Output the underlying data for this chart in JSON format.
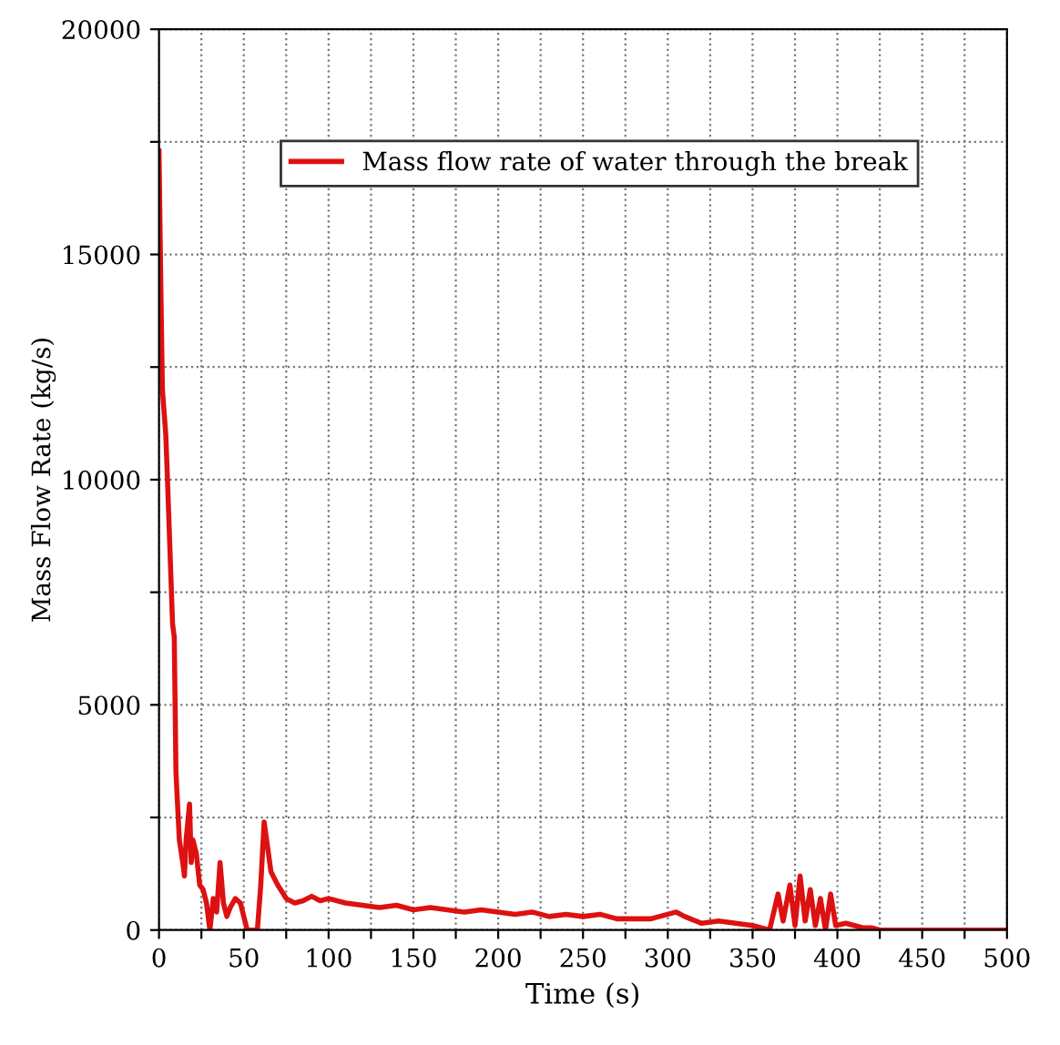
{
  "chart_data": {
    "type": "line",
    "xlabel": "Time (s)",
    "ylabel": "Mass Flow Rate (kg/s)",
    "x": [
      0,
      1,
      2,
      4,
      5,
      8,
      9,
      10,
      12,
      14,
      15,
      16,
      18,
      19,
      20,
      22,
      24,
      26,
      28,
      30,
      32,
      34,
      36,
      38,
      40,
      42,
      45,
      48,
      52,
      58,
      60,
      62,
      66,
      70,
      75,
      80,
      85,
      90,
      95,
      100,
      110,
      120,
      130,
      140,
      150,
      160,
      170,
      180,
      190,
      200,
      210,
      220,
      230,
      240,
      250,
      260,
      270,
      280,
      290,
      300,
      305,
      310,
      320,
      330,
      340,
      350,
      360,
      365,
      368,
      372,
      375,
      378,
      381,
      384,
      387,
      390,
      393,
      396,
      399,
      405,
      410,
      415,
      420,
      425,
      500
    ],
    "series": [
      {
        "name": "Mass flow rate of water through the break",
        "color": "#dd1111",
        "values": [
          17300,
          14500,
          12000,
          11000,
          10000,
          6800,
          6500,
          3500,
          2000,
          1500,
          1200,
          2000,
          2800,
          1500,
          2000,
          1700,
          1000,
          900,
          600,
          0,
          700,
          400,
          1500,
          600,
          300,
          500,
          700,
          600,
          0,
          0,
          1000,
          2400,
          1300,
          1000,
          700,
          600,
          650,
          750,
          650,
          700,
          600,
          550,
          500,
          550,
          450,
          500,
          450,
          400,
          450,
          400,
          350,
          400,
          300,
          350,
          300,
          350,
          250,
          250,
          250,
          350,
          400,
          300,
          150,
          200,
          150,
          100,
          0,
          800,
          200,
          1000,
          100,
          1200,
          200,
          900,
          100,
          700,
          0,
          800,
          100,
          150,
          100,
          50,
          50,
          0,
          0
        ]
      }
    ],
    "xlim": [
      0,
      500
    ],
    "ylim": [
      0,
      20000
    ],
    "xticks": [
      0,
      {
        "value": 25,
        "label": null
      },
      50,
      {
        "value": 75,
        "label": null
      },
      100,
      {
        "value": 125,
        "label": null
      },
      150,
      {
        "value": 175,
        "label": null
      },
      200,
      {
        "value": 225,
        "label": null
      },
      250,
      {
        "value": 275,
        "label": null
      },
      300,
      {
        "value": 325,
        "label": null
      },
      350,
      {
        "value": 375,
        "label": null
      },
      400,
      {
        "value": 425,
        "label": null
      },
      450,
      {
        "value": 475,
        "label": null
      },
      500
    ],
    "yticks": [
      0,
      {
        "value": 2500,
        "label": null
      },
      5000,
      {
        "value": 7500,
        "label": null
      },
      10000,
      {
        "value": 12500,
        "label": null
      },
      15000,
      {
        "value": 17500,
        "label": null
      },
      20000
    ],
    "grid": true,
    "legend": "top right",
    "marker": "none",
    "line_style": "solid"
  }
}
